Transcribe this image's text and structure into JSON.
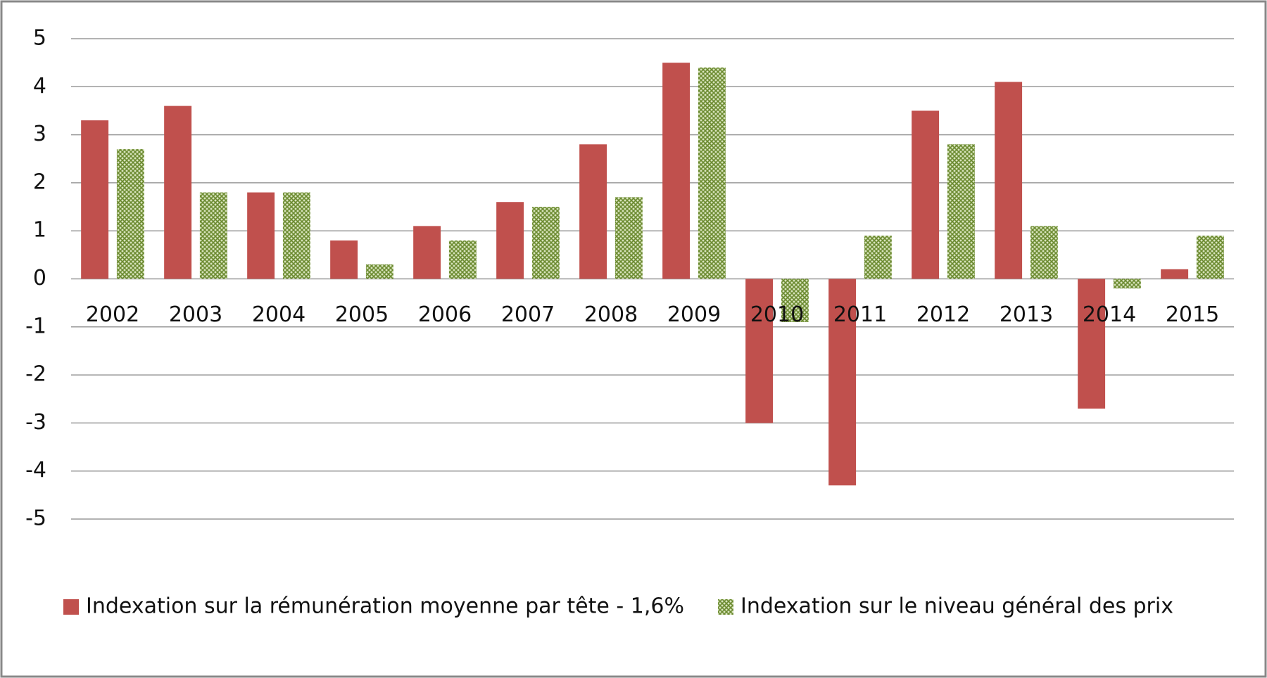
{
  "chart_data": {
    "type": "bar",
    "categories": [
      "2002",
      "2003",
      "2004",
      "2005",
      "2006",
      "2007",
      "2008",
      "2009",
      "2010",
      "2011",
      "2012",
      "2013",
      "2014",
      "2015"
    ],
    "series": [
      {
        "name": "Indexation sur la rémunération moyenne par tête - 1,6%",
        "color": "#c0504d",
        "values": [
          3.3,
          3.6,
          1.8,
          0.8,
          1.1,
          1.6,
          2.8,
          4.5,
          -3.0,
          -4.3,
          3.5,
          4.1,
          -2.7,
          0.2
        ]
      },
      {
        "name": "Indexation sur le niveau général des prix",
        "color": "#6b8a30",
        "values": [
          2.7,
          1.8,
          1.8,
          0.3,
          0.8,
          1.5,
          1.7,
          4.4,
          -0.9,
          0.9,
          2.8,
          1.1,
          -0.2,
          0.9
        ]
      }
    ],
    "ylim": [
      -5,
      5
    ],
    "yticks": [
      -5,
      -4,
      -3,
      -2,
      -1,
      0,
      1,
      2,
      3,
      4,
      5
    ],
    "grid": true,
    "legend": "bottom"
  }
}
